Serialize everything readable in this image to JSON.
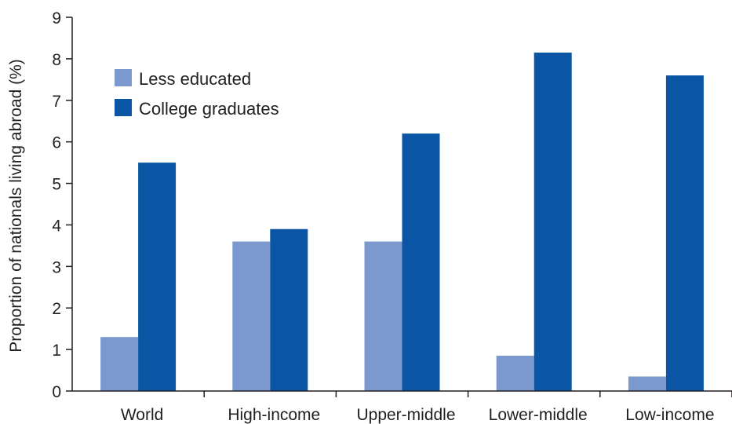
{
  "chart_data": {
    "type": "bar",
    "title": "",
    "xlabel": "",
    "ylabel": "Proportion of nationals living abroad (%)",
    "ylim": [
      0,
      9
    ],
    "yticks": [
      "0",
      "1",
      "2",
      "3",
      "4",
      "5",
      "6",
      "7",
      "8",
      "9"
    ],
    "grid": false,
    "legend_position": "top-left",
    "categories": [
      "World",
      "High-income",
      "Upper-middle",
      "Lower-middle",
      "Low-income"
    ],
    "series": [
      {
        "name": "Less educated",
        "color": "#7b98cf",
        "values": [
          1.3,
          3.6,
          3.6,
          0.85,
          0.35
        ]
      },
      {
        "name": "College graduates",
        "color": "#0a56a4",
        "values": [
          5.5,
          3.9,
          6.2,
          8.15,
          7.6
        ]
      }
    ]
  }
}
